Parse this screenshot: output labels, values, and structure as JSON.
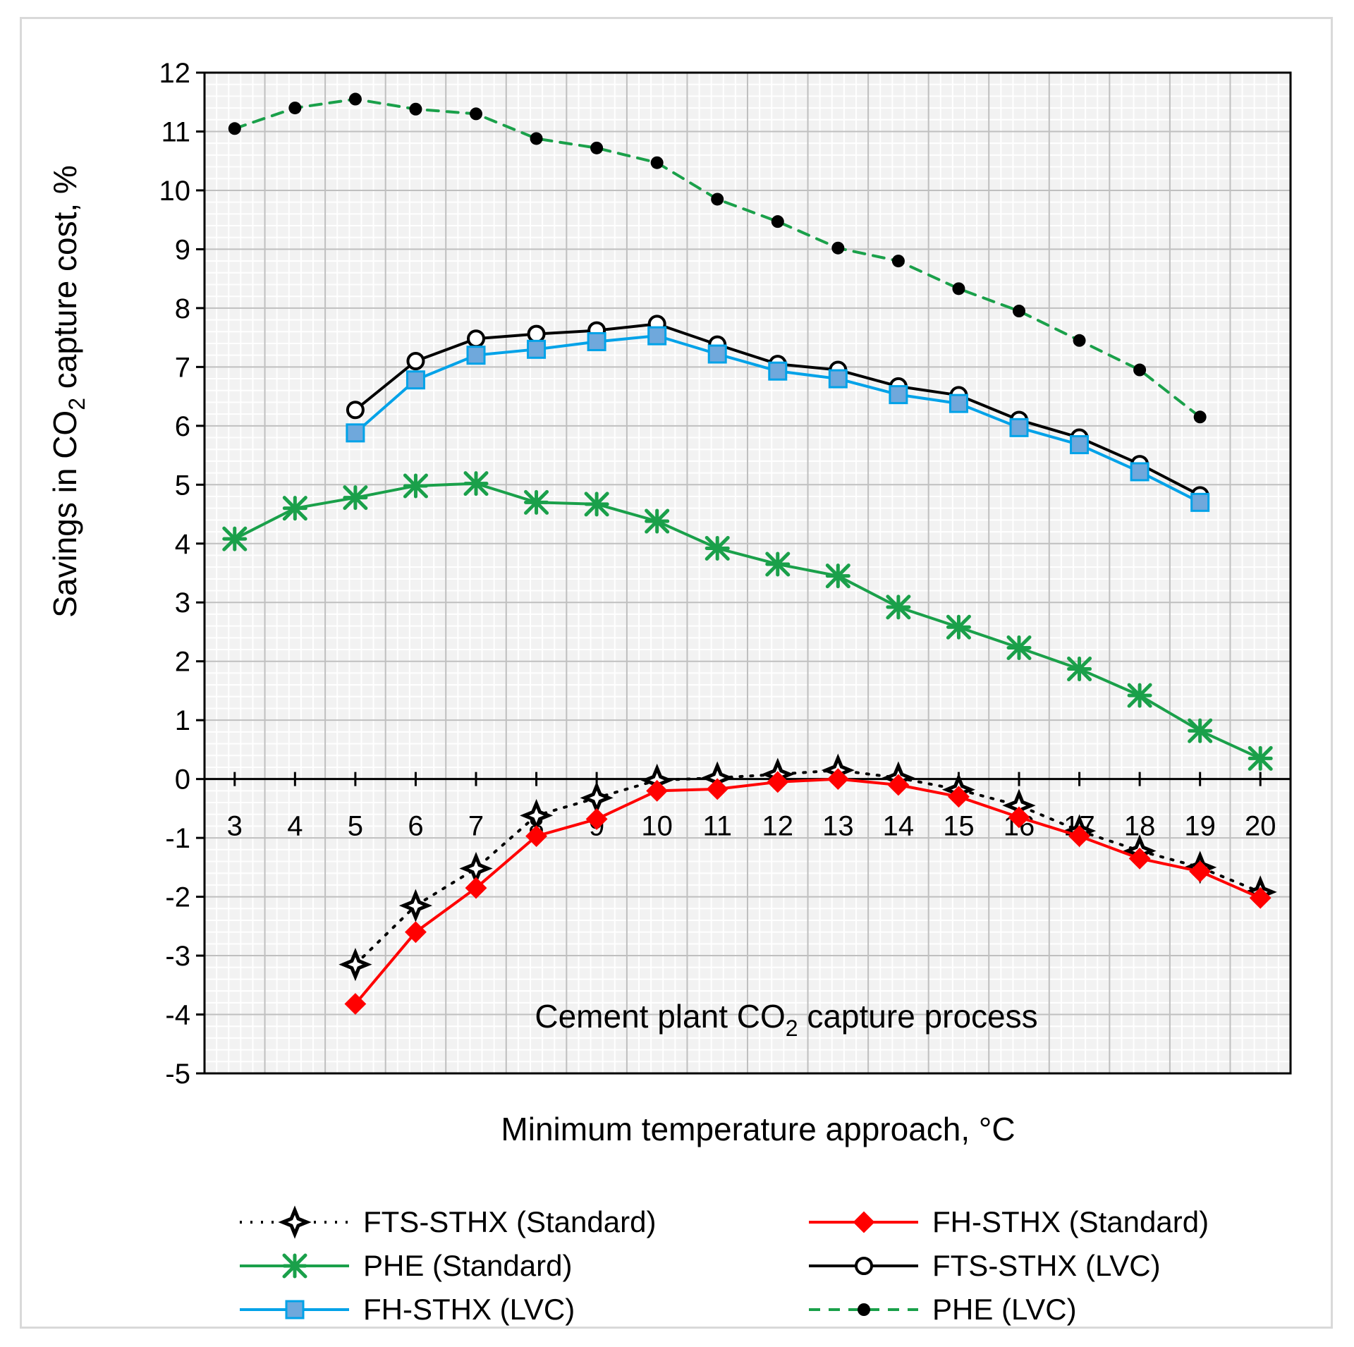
{
  "chart_data": {
    "type": "line",
    "title": "",
    "annotation": {
      "prefix": "Cement plant CO",
      "sub": "2",
      "suffix": " capture process"
    },
    "xlabel": "Minimum temperature  approach, °C",
    "ylabel": {
      "prefix": "Savings in CO",
      "sub": "2",
      "suffix": " capture cost, %"
    },
    "ylim": [
      -5,
      12
    ],
    "yticks": [
      "-5",
      "-4",
      "-3",
      "-2",
      "-1",
      "0",
      "1",
      "2",
      "3",
      "4",
      "5",
      "6",
      "7",
      "8",
      "9",
      "10",
      "11",
      "12"
    ],
    "x": [
      3,
      4,
      5,
      6,
      7,
      8,
      9,
      10,
      11,
      12,
      13,
      14,
      15,
      16,
      17,
      18,
      19,
      20
    ],
    "xticks": [
      "3",
      "4",
      "5",
      "6",
      "7",
      "8",
      "9",
      "10",
      "11",
      "12",
      "13",
      "14",
      "15",
      "16",
      "17",
      "18",
      "19",
      "20"
    ],
    "grid": true,
    "legend_position": "bottom",
    "series": [
      {
        "name": "FTS-STHX (Standard)",
        "color": "#000000",
        "style": "dotted",
        "marker": "star",
        "values": [
          null,
          null,
          -3.15,
          -2.15,
          -1.52,
          -0.62,
          -0.32,
          -0.02,
          0.02,
          0.08,
          0.15,
          0.02,
          -0.18,
          -0.45,
          -0.88,
          -1.22,
          -1.5,
          -1.92
        ]
      },
      {
        "name": "FH-STHX (Standard)",
        "color": "#ff0000",
        "style": "solid",
        "marker": "diamond",
        "values": [
          null,
          null,
          -3.82,
          -2.6,
          -1.85,
          -0.97,
          -0.68,
          -0.2,
          -0.17,
          -0.05,
          0.0,
          -0.1,
          -0.3,
          -0.65,
          -0.97,
          -1.35,
          -1.57,
          -2.02
        ]
      },
      {
        "name": "PHE (Standard)",
        "color": "#1aa04a",
        "style": "solid",
        "marker": "asterisk",
        "values": [
          4.08,
          4.6,
          4.78,
          4.98,
          5.02,
          4.7,
          4.67,
          4.38,
          3.92,
          3.65,
          3.45,
          2.92,
          2.58,
          2.23,
          1.87,
          1.42,
          0.82,
          0.35
        ]
      },
      {
        "name": "FTS-STHX (LVC)",
        "color": "#000000",
        "style": "solid",
        "marker": "circle",
        "values": [
          null,
          null,
          6.27,
          7.1,
          7.48,
          7.56,
          7.62,
          7.73,
          7.38,
          7.05,
          6.95,
          6.67,
          6.52,
          6.1,
          5.8,
          5.35,
          4.82,
          null
        ]
      },
      {
        "name": "FH-STHX (LVC)",
        "color": "#00a2e8",
        "style": "solid",
        "marker": "square",
        "values": [
          null,
          null,
          5.88,
          6.78,
          7.2,
          7.3,
          7.43,
          7.53,
          7.22,
          6.93,
          6.8,
          6.53,
          6.38,
          5.97,
          5.68,
          5.22,
          4.7,
          null
        ]
      },
      {
        "name": "PHE (LVC)",
        "color": "#1aa04a",
        "style": "dashed",
        "marker": "dot",
        "values": [
          11.05,
          11.4,
          11.55,
          11.38,
          11.3,
          10.88,
          10.72,
          10.47,
          9.85,
          9.47,
          9.02,
          8.8,
          8.33,
          7.95,
          7.45,
          6.95,
          6.15,
          null
        ]
      }
    ]
  }
}
